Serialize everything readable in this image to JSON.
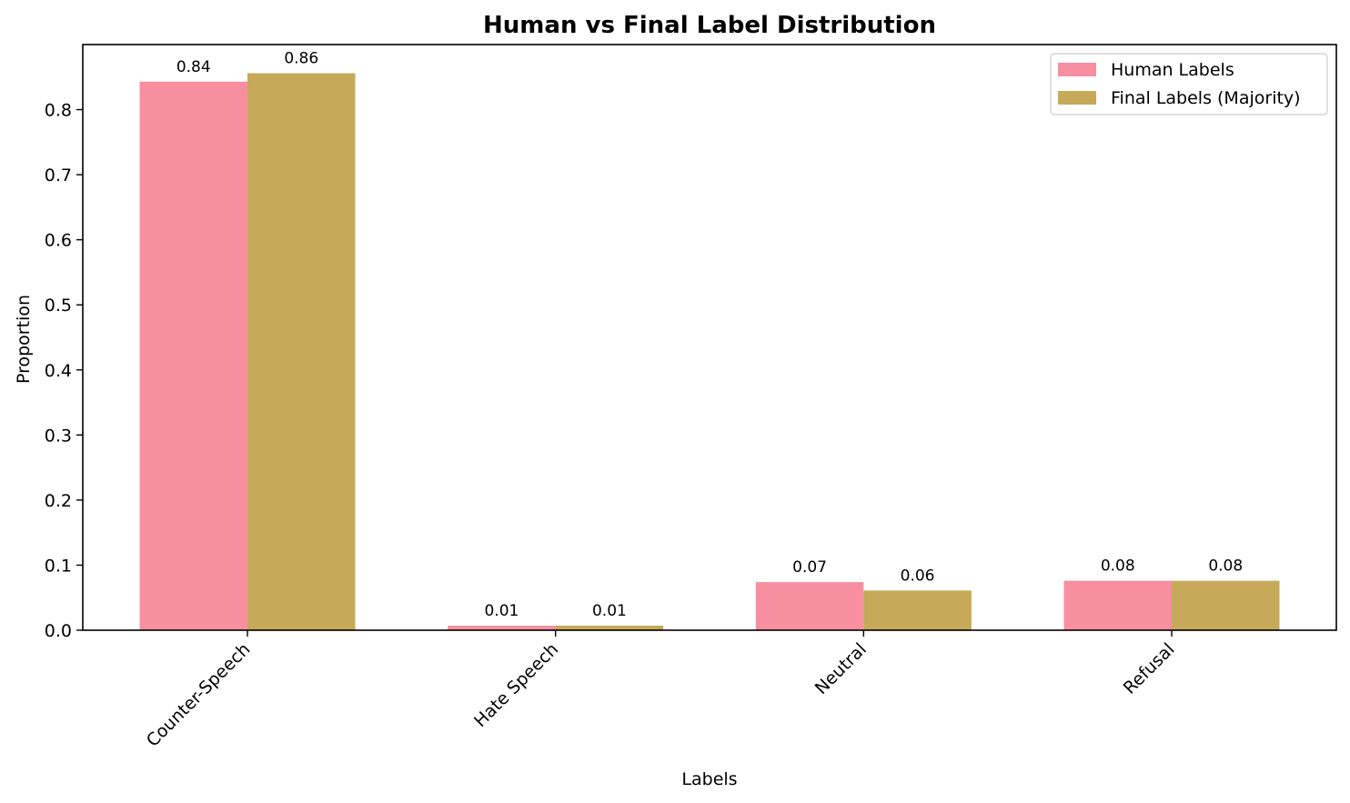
{
  "chart_data": {
    "type": "bar",
    "title": "Human vs Final Label Distribution",
    "xlabel": "Labels",
    "ylabel": "Proportion",
    "categories": [
      "Counter-Speech",
      "Hate Speech",
      "Neutral",
      "Refusal"
    ],
    "series": [
      {
        "name": "Human Labels",
        "color": "#f78fa0",
        "values": [
          0.843,
          0.007,
          0.074,
          0.076
        ],
        "labels": [
          "0.84",
          "0.01",
          "0.07",
          "0.08"
        ]
      },
      {
        "name": "Final Labels (Majority)",
        "color": "#c6aa5a",
        "values": [
          0.856,
          0.007,
          0.061,
          0.076
        ],
        "labels": [
          "0.86",
          "0.01",
          "0.06",
          "0.08"
        ]
      }
    ],
    "ylim": [
      0,
      0.9
    ],
    "yticks": [
      0.0,
      0.1,
      0.2,
      0.3,
      0.4,
      0.5,
      0.6,
      0.7,
      0.8
    ],
    "ytick_labels": [
      "0.0",
      "0.1",
      "0.2",
      "0.3",
      "0.4",
      "0.5",
      "0.6",
      "0.7",
      "0.8"
    ],
    "grid": false,
    "legend_position": "top-right"
  }
}
